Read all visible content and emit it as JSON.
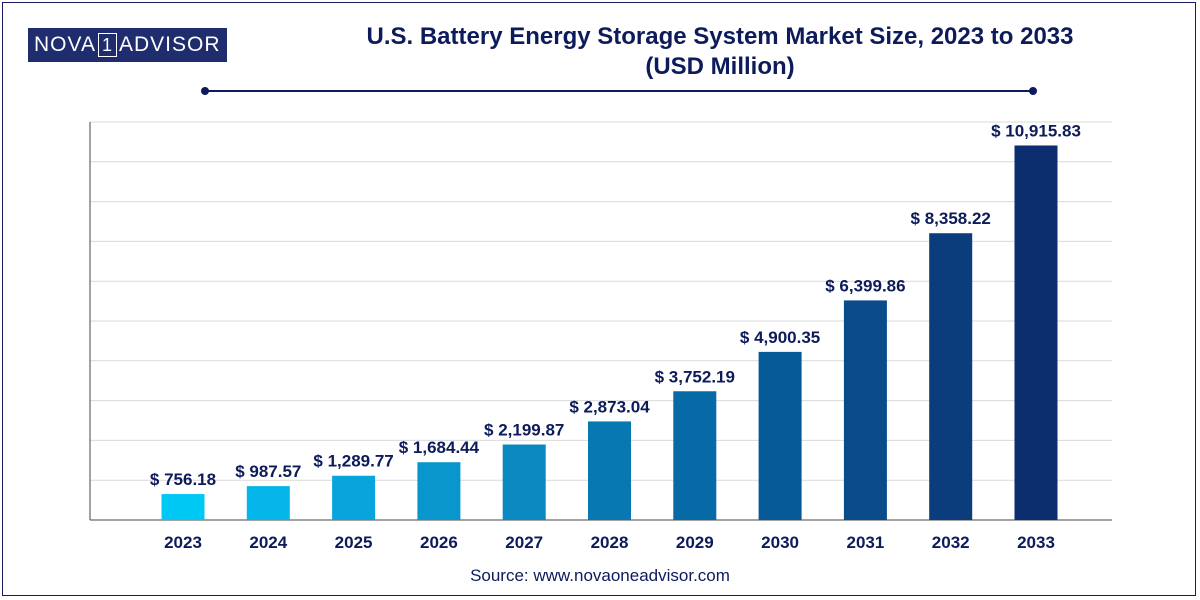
{
  "brand": {
    "left": "NOVA",
    "mid": "1",
    "right": "ADVISOR"
  },
  "title_line1": "U.S. Battery Energy Storage System Market Size, 2023 to 2033",
  "title_line2": "(USD Million)",
  "source": "Source: www.novaoneadvisor.com",
  "chart_data": {
    "type": "bar",
    "title": "U.S. Battery Energy Storage System Market Size, 2023 to 2033 (USD Million)",
    "xlabel": "",
    "ylabel": "",
    "ylim": [
      0,
      11600
    ],
    "grid": true,
    "categories": [
      "2023",
      "2024",
      "2025",
      "2026",
      "2027",
      "2028",
      "2029",
      "2030",
      "2031",
      "2032",
      "2033"
    ],
    "values": [
      756.18,
      987.57,
      1289.77,
      1684.44,
      2199.87,
      2873.04,
      3752.19,
      4900.35,
      6399.86,
      8358.22,
      10915.83
    ],
    "labels": [
      "$ 756.18",
      "$ 987.57",
      "$ 1,289.77",
      "$ 1,684.44",
      "$ 2,199.87",
      "$ 2,873.04",
      "$ 3,752.19",
      "$ 4,900.35",
      "$ 6,399.86",
      "$ 8,358.22",
      "$ 10,915.83"
    ],
    "colors": [
      "#00c8f5",
      "#05b6ea",
      "#07a5dc",
      "#0996cd",
      "#0a88c0",
      "#0878b2",
      "#0769a6",
      "#075a98",
      "#0a4b8a",
      "#0b3c7c",
      "#0c2e6e"
    ]
  }
}
